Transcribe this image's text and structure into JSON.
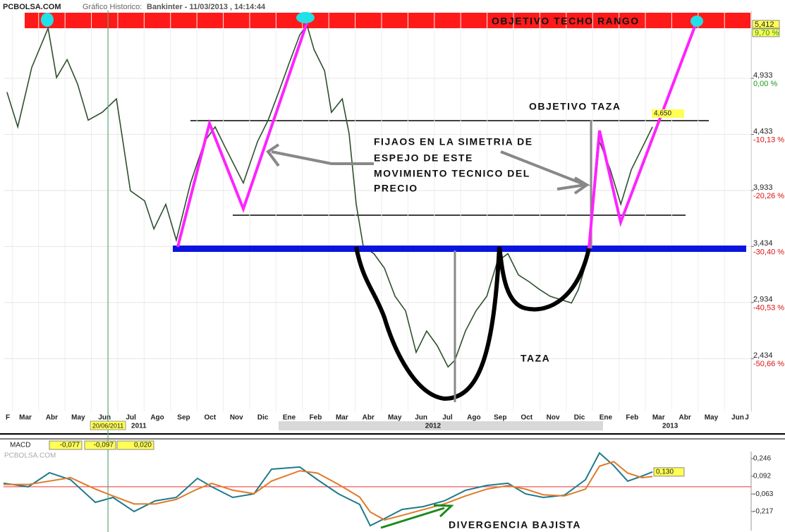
{
  "header": {
    "site": "PCBOLSA.COM",
    "label": "Gráfico Historico:",
    "instrument": "Bankinter - 11/03/2013 , 14:14:44"
  },
  "chart_data": [
    {
      "type": "line",
      "x": [
        1.8,
        2.21,
        2.74,
        3.36,
        3.68,
        4.08,
        4.48,
        4.88,
        5.41,
        5.95,
        6.48,
        7.02,
        7.37,
        7.82,
        8.22,
        8.76,
        9.29,
        9.69,
        10.09,
        10.76,
        11.3,
        11.7,
        12.1,
        12.5,
        12.9,
        13.17,
        13.44,
        13.84,
        14.1,
        14.51,
        14.77,
        15.04,
        15.31,
        15.71,
        16.11,
        16.51,
        16.91,
        17.31,
        17.71,
        18.11,
        18.52,
        18.78,
        19.18,
        19.58,
        19.99,
        20.39,
        20.79,
        21.19,
        21.59,
        21.99,
        22.39,
        22.79,
        23.2,
        23.46,
        23.86,
        24.26,
        24.67,
        25.07,
        25.47,
        25.87,
        26.27
      ],
      "series": [
        {
          "color": "#2f4f2f",
          "values": [
            4.81,
            4.5,
            5.03,
            5.38,
            4.94,
            5.1,
            4.88,
            4.56,
            4.63,
            4.75,
            3.93,
            3.84,
            3.59,
            3.81,
            3.49,
            4.0,
            4.37,
            4.5,
            4.31,
            4.0,
            4.37,
            4.56,
            4.81,
            5.07,
            5.32,
            5.41,
            5.19,
            5.0,
            4.63,
            4.75,
            4.44,
            3.81,
            3.43,
            3.37,
            3.24,
            2.99,
            2.86,
            2.49,
            2.68,
            2.55,
            2.36,
            2.42,
            2.68,
            2.86,
            2.99,
            3.3,
            3.37,
            3.18,
            3.12,
            3.05,
            2.99,
            2.96,
            2.93,
            3.05,
            3.37,
            4.37,
            4.12,
            3.81,
            4.12,
            4.31,
            4.5
          ]
        }
      ],
      "xlim": [
        1.67,
        30.01
      ],
      "xticks": [
        {
          "value": 1,
          "label": "F"
        },
        {
          "value": 2,
          "label": "Mar"
        },
        {
          "value": 3,
          "label": "Abr"
        },
        {
          "value": 4,
          "label": "May"
        },
        {
          "value": 5,
          "label": "Jun"
        },
        {
          "value": 6,
          "label": "Jul"
        },
        {
          "value": 7,
          "label": "Ago"
        },
        {
          "value": 8,
          "label": "Sep"
        },
        {
          "value": 9,
          "label": "Oct"
        },
        {
          "value": 10,
          "label": "Nov"
        },
        {
          "value": 11,
          "label": "Dic"
        },
        {
          "value": 12,
          "label": "Ene"
        },
        {
          "value": 13,
          "label": "Feb"
        },
        {
          "value": 14,
          "label": "Mar"
        },
        {
          "value": 15,
          "label": "Abr"
        },
        {
          "value": 16,
          "label": "May"
        },
        {
          "value": 17,
          "label": "Jun"
        },
        {
          "value": 18,
          "label": "Jul"
        },
        {
          "value": 19,
          "label": "Ago"
        },
        {
          "value": 20,
          "label": "Sep"
        },
        {
          "value": 21,
          "label": "Oct"
        },
        {
          "value": 22,
          "label": "Nov"
        },
        {
          "value": 23,
          "label": "Dic"
        },
        {
          "value": 24,
          "label": "Ene"
        },
        {
          "value": 25,
          "label": "Feb"
        },
        {
          "value": 26,
          "label": "Mar"
        },
        {
          "value": 27,
          "label": "Abr"
        },
        {
          "value": 28,
          "label": "May"
        },
        {
          "value": 29,
          "label": "Jun"
        },
        {
          "value": 30,
          "label": "J"
        }
      ],
      "year_labels": [
        {
          "value": 6.8,
          "label": "2011"
        },
        {
          "value": 17.95,
          "label": "2012"
        },
        {
          "value": 26.94,
          "label": "2013"
        }
      ],
      "date_marker": {
        "value": 5.63,
        "label": "20/06/2011"
      },
      "ylim": [
        1.964,
        5.537
      ],
      "yticks": [
        {
          "value": 4.933,
          "label": "4,933"
        },
        {
          "value": 4.433,
          "label": "4,433"
        },
        {
          "value": 3.933,
          "label": "3,933"
        },
        {
          "value": 3.434,
          "label": "3,434"
        },
        {
          "value": 2.934,
          "label": "2,934"
        },
        {
          "value": 2.434,
          "label": "2,434"
        }
      ],
      "y2lim": [
        -60.19,
        12.24
      ],
      "y2ticks": [
        {
          "value": 0,
          "label": "0,00 %"
        },
        {
          "value": -10.13,
          "label": "-10,13 %"
        },
        {
          "value": -20.26,
          "label": "-20,26 %"
        },
        {
          "value": -30.4,
          "label": "-30,40 %"
        },
        {
          "value": -40.53,
          "label": "-40,53 %"
        },
        {
          "value": -50.66,
          "label": "-50,66 %"
        }
      ],
      "last_high": {
        "value": 5.412,
        "label": "5,412"
      },
      "last_high_pct": {
        "value": 9.7,
        "label": "9,70 %"
      },
      "target": {
        "value": 4.65,
        "label": "4,650"
      },
      "annotations": [
        "OBJETIVO TECHO RANGO",
        "OBJETIVO TAZA",
        "FIJAOS EN LA SIMETRIA DE",
        "ESPEJO DE ESTE",
        "MOVIMIENTO TECNICO DEL",
        "PRECIO",
        "TAZA"
      ]
    },
    {
      "type": "line",
      "title": "MACD",
      "readouts": [
        "-0,077",
        "-0,097",
        "0,020"
      ],
      "watermark": "PCBOLSA.COM",
      "x": [
        1.67,
        2.61,
        3.41,
        4.21,
        5.15,
        5.82,
        6.62,
        7.42,
        8.22,
        9.02,
        9.56,
        10.36,
        11.16,
        11.83,
        12.9,
        13.57,
        14.37,
        15.17,
        15.57,
        16.11,
        16.78,
        17.58,
        18.38,
        19.18,
        19.99,
        20.79,
        21.46,
        22.13,
        22.93,
        23.73,
        24.26,
        24.8,
        25.33,
        25.87,
        26.27
      ],
      "series": [
        {
          "color": "#1f7a8c",
          "values": [
            0.031,
            0,
            0.123,
            0.062,
            -0.136,
            -0.093,
            -0.216,
            -0.123,
            -0.093,
            0.074,
            0,
            -0.093,
            -0.062,
            0.154,
            0.173,
            0.062,
            -0.062,
            -0.154,
            -0.34,
            -0.278,
            -0.198,
            -0.173,
            -0.123,
            -0.031,
            0.012,
            0.031,
            -0.062,
            -0.093,
            -0.074,
            0.062,
            0.296,
            0.185,
            0.049,
            0.093,
            0.13
          ]
        },
        {
          "color": "#e07a2a",
          "values": [
            0.02,
            0.02,
            0.05,
            0.08,
            -0.02,
            -0.08,
            -0.15,
            -0.15,
            -0.11,
            -0.02,
            0.03,
            -0.03,
            -0.06,
            0.05,
            0.14,
            0.12,
            0.02,
            -0.09,
            -0.22,
            -0.29,
            -0.25,
            -0.2,
            -0.15,
            -0.08,
            -0.02,
            0.01,
            -0.02,
            -0.07,
            -0.08,
            -0.02,
            0.18,
            0.22,
            0.12,
            0.08,
            0.09
          ]
        }
      ],
      "ylim": [
        -0.383,
        0.308
      ],
      "yticks": [
        {
          "value": 0.246,
          "label": "0,246"
        },
        {
          "value": 0.092,
          "label": "0,092"
        },
        {
          "value": -0.063,
          "label": "-0,063"
        },
        {
          "value": -0.217,
          "label": "-0,217"
        }
      ],
      "last_value": {
        "value": 0.13,
        "label": "0,130"
      },
      "annotation": "DIVERGENCIA BAJISTA"
    }
  ]
}
